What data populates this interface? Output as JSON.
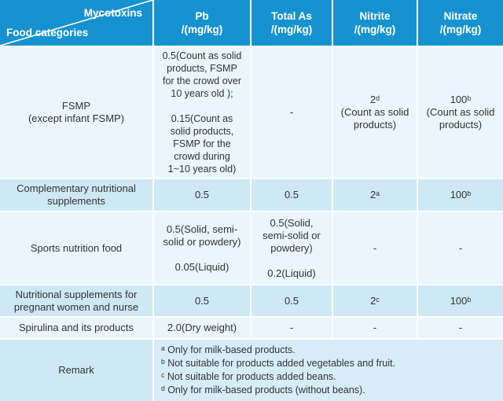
{
  "colors": {
    "header_bg": "#1792d0",
    "header_text": "#ffffff",
    "row_light": "#eaf5fd",
    "row_alt": "#cfe8f6",
    "remark_notes_bg": "#d6edf9",
    "grid_line": "#ffffff",
    "body_text": "#333333"
  },
  "table": {
    "corner": {
      "column_axis_label": "Mycotoxins",
      "row_axis_label": "Food categories"
    },
    "columns": [
      {
        "name": "Pb",
        "unit": "/(mg/kg)"
      },
      {
        "name": "Total As",
        "unit": "/(mg/kg)"
      },
      {
        "name": "Nitrite",
        "unit": "/(mg/kg)"
      },
      {
        "name": "Nitrate",
        "unit": "/(mg/kg)"
      }
    ],
    "rows": [
      {
        "category": "FSMP\n(except infant FSMP)",
        "pb": "0.5(Count as solid\nproducts, FSMP\nfor the crowd over\n10 years old );\n\n0.15(Count as\nsolid products,\nFSMP for the\ncrowd during\n1~10 years old)",
        "total_as": "-",
        "nitrite": "2ᵈ\n(Count as solid\nproducts)",
        "nitrate": "100ᵇ\n(Count as solid\nproducts)"
      },
      {
        "category": "Complementary nutritional\nsupplements",
        "pb": "0.5",
        "total_as": "0.5",
        "nitrite": "2ᵃ",
        "nitrate": "100ᵇ"
      },
      {
        "category": "Sports nutrition food",
        "pb": "0.5(Solid, semi-\nsolid or powdery)\n\n0.05(Liquid)",
        "total_as": "0.5(Solid,\nsemi-solid or\npowdery)\n\n0.2(Liquid)",
        "nitrite": "-",
        "nitrate": "-"
      },
      {
        "category": "Nutritional supplements for\npregnant women and nurse",
        "pb": "0.5",
        "total_as": "0.5",
        "nitrite": "2ᶜ",
        "nitrate": "100ᵇ"
      },
      {
        "category": "Spirulina and its products",
        "pb": "2.0(Dry weight)",
        "total_as": "-",
        "nitrite": "-",
        "nitrate": "-"
      }
    ],
    "remark": {
      "label": "Remark",
      "notes": [
        "ᵃ Only for milk-based products.",
        "ᵇ Not suitable for products added vegetables and fruit.",
        "ᶜ Not suitable for products added beans.",
        "ᵈ Only for milk-based products (without beans)."
      ]
    }
  }
}
